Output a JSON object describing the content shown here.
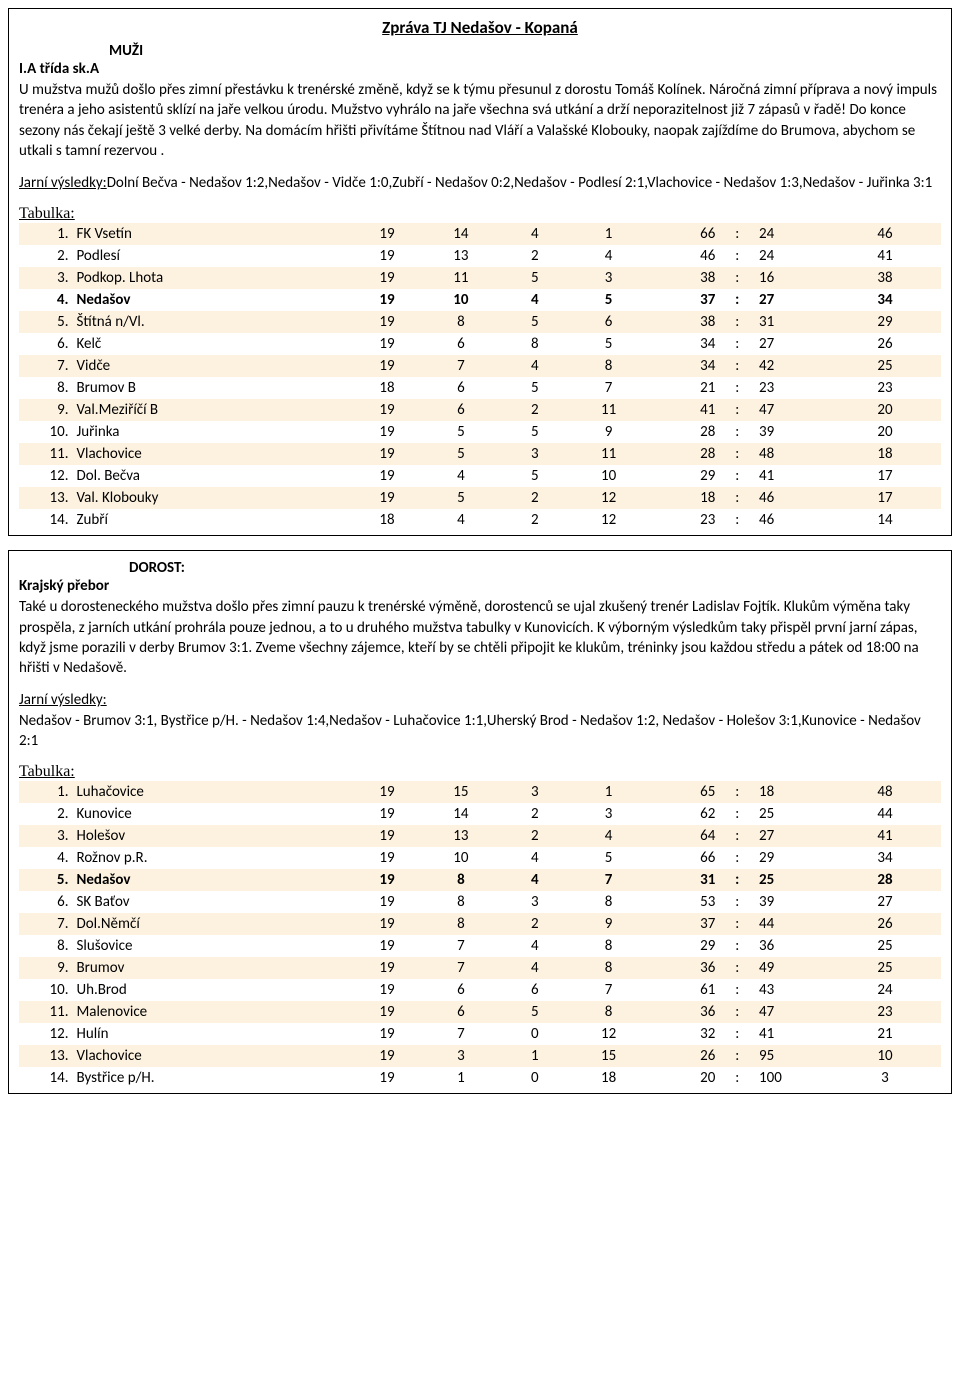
{
  "doc_title": "Zpráva TJ Nedašov - Kopaná",
  "section1": {
    "heading_center": "MUŽI",
    "sub": "I.A třída sk.A",
    "body": "U mužstva mužů došlo přes zimní přestávku k trenérské změně, když se k týmu přesunul z dorostu Tomáš Kolínek. Náročná zimní příprava a nový impuls trenéra a jeho asistentů sklízí na jaře velkou úrodu. Mužstvo vyhrálo na jaře všechna svá utkání a drží neporazitelnost již 7 zápasů v řadě! Do konce sezony nás čekají ještě 3 velké derby. Na domácím hřišti přivítáme Štítnou nad Vláří a Valašské Klobouky, naopak zajíždíme do Brumova, abychom se utkali s tamní rezervou .",
    "results_label": "Jarní výsledky:",
    "results": "Dolní Bečva - Nedašov 1:2,Nedašov - Vidče 1:0,Zubří - Nedašov 0:2,Nedašov - Podlesí 2:1,Vlachovice - Nedašov 1:3,Nedašov - Juřinka 3:1",
    "tabulka_label": "Tabulka:",
    "highlight_index": 3,
    "rows": [
      {
        "rank": "1.",
        "team": "FK Vsetín",
        "p": "19",
        "w": "14",
        "d": "4",
        "l": "1",
        "gf": "66",
        "ga": "24",
        "pts": "46"
      },
      {
        "rank": "2.",
        "team": "Podlesí",
        "p": "19",
        "w": "13",
        "d": "2",
        "l": "4",
        "gf": "46",
        "ga": "24",
        "pts": "41"
      },
      {
        "rank": "3.",
        "team": "Podkop. Lhota",
        "p": "19",
        "w": "11",
        "d": "5",
        "l": "3",
        "gf": "38",
        "ga": "16",
        "pts": "38"
      },
      {
        "rank": "4.",
        "team": "Nedašov",
        "p": "19",
        "w": "10",
        "d": "4",
        "l": "5",
        "gf": "37",
        "ga": "27",
        "pts": "34"
      },
      {
        "rank": "5.",
        "team": "Štítná n/Vl.",
        "p": "19",
        "w": "8",
        "d": "5",
        "l": "6",
        "gf": "38",
        "ga": "31",
        "pts": "29"
      },
      {
        "rank": "6.",
        "team": "Kelč",
        "p": "19",
        "w": "6",
        "d": "8",
        "l": "5",
        "gf": "34",
        "ga": "27",
        "pts": "26"
      },
      {
        "rank": "7.",
        "team": "Vidče",
        "p": "19",
        "w": "7",
        "d": "4",
        "l": "8",
        "gf": "34",
        "ga": "42",
        "pts": "25"
      },
      {
        "rank": "8.",
        "team": "Brumov B",
        "p": "18",
        "w": "6",
        "d": "5",
        "l": "7",
        "gf": "21",
        "ga": "23",
        "pts": "23"
      },
      {
        "rank": "9.",
        "team": "Val.Meziříčí B",
        "p": "19",
        "w": "6",
        "d": "2",
        "l": "11",
        "gf": "41",
        "ga": "47",
        "pts": "20"
      },
      {
        "rank": "10.",
        "team": "Juřinka",
        "p": "19",
        "w": "5",
        "d": "5",
        "l": "9",
        "gf": "28",
        "ga": "39",
        "pts": "20"
      },
      {
        "rank": "11.",
        "team": "Vlachovice",
        "p": "19",
        "w": "5",
        "d": "3",
        "l": "11",
        "gf": "28",
        "ga": "48",
        "pts": "18"
      },
      {
        "rank": "12.",
        "team": "Dol. Bečva",
        "p": "19",
        "w": "4",
        "d": "5",
        "l": "10",
        "gf": "29",
        "ga": "41",
        "pts": "17"
      },
      {
        "rank": "13.",
        "team": "Val. Klobouky",
        "p": "19",
        "w": "5",
        "d": "2",
        "l": "12",
        "gf": "18",
        "ga": "46",
        "pts": "17"
      },
      {
        "rank": "14.",
        "team": "Zubří",
        "p": "18",
        "w": "4",
        "d": "2",
        "l": "12",
        "gf": "23",
        "ga": "46",
        "pts": "14"
      }
    ]
  },
  "section2": {
    "heading_center": "DOROST:",
    "sub": "Krajský přebor",
    "body": "Také u dorosteneckého mužstva došlo přes zimní pauzu k trenérské výměně, dorostenců se ujal zkušený trenér Ladislav Fojtík. Klukům výměna taky prospěla, z jarních utkání prohrála pouze jednou, a to u druhého mužstva tabulky v Kunovicích. K výborným výsledkům taky přispěl první jarní zápas, když jsme porazili v derby Brumov 3:1. Zveme všechny zájemce, kteří by se chtěli připojit ke klukům, tréninky jsou každou středu a pátek od 18:00 na hřišti v Nedašově.",
    "results_label": "Jarní výsledky:",
    "results": "Nedašov - Brumov 3:1, Bystřice p/H. - Nedašov 1:4,Nedašov - Luhačovice 1:1,Uherský Brod - Nedašov 1:2, Nedašov - Holešov 3:1,Kunovice - Nedašov 2:1",
    "tabulka_label": "Tabulka:",
    "highlight_index": 4,
    "rows": [
      {
        "rank": "1.",
        "team": "Luhačovice",
        "p": "19",
        "w": "15",
        "d": "3",
        "l": "1",
        "gf": "65",
        "ga": "18",
        "pts": "48"
      },
      {
        "rank": "2.",
        "team": "Kunovice",
        "p": "19",
        "w": "14",
        "d": "2",
        "l": "3",
        "gf": "62",
        "ga": "25",
        "pts": "44"
      },
      {
        "rank": "3.",
        "team": "Holešov",
        "p": "19",
        "w": "13",
        "d": "2",
        "l": "4",
        "gf": "64",
        "ga": "27",
        "pts": "41"
      },
      {
        "rank": "4.",
        "team": "Rožnov p.R.",
        "p": "19",
        "w": "10",
        "d": "4",
        "l": "5",
        "gf": "66",
        "ga": "29",
        "pts": "34"
      },
      {
        "rank": "5.",
        "team": "Nedašov",
        "p": "19",
        "w": "8",
        "d": "4",
        "l": "7",
        "gf": "31",
        "ga": "25",
        "pts": "28"
      },
      {
        "rank": "6.",
        "team": "SK Baťov",
        "p": "19",
        "w": "8",
        "d": "3",
        "l": "8",
        "gf": "53",
        "ga": "39",
        "pts": "27"
      },
      {
        "rank": "7.",
        "team": "Dol.Němčí",
        "p": "19",
        "w": "8",
        "d": "2",
        "l": "9",
        "gf": "37",
        "ga": "44",
        "pts": "26"
      },
      {
        "rank": "8.",
        "team": "Slušovice",
        "p": "19",
        "w": "7",
        "d": "4",
        "l": "8",
        "gf": "29",
        "ga": "36",
        "pts": "25"
      },
      {
        "rank": "9.",
        "team": "Brumov",
        "p": "19",
        "w": "7",
        "d": "4",
        "l": "8",
        "gf": "36",
        "ga": "49",
        "pts": "25"
      },
      {
        "rank": "10.",
        "team": "Uh.Brod",
        "p": "19",
        "w": "6",
        "d": "6",
        "l": "7",
        "gf": "61",
        "ga": "43",
        "pts": "24"
      },
      {
        "rank": "11.",
        "team": "Malenovice",
        "p": "19",
        "w": "6",
        "d": "5",
        "l": "8",
        "gf": "36",
        "ga": "47",
        "pts": "23"
      },
      {
        "rank": "12.",
        "team": "Hulín",
        "p": "19",
        "w": "7",
        "d": "0",
        "l": "12",
        "gf": "32",
        "ga": "41",
        "pts": "21"
      },
      {
        "rank": "13.",
        "team": "Vlachovice",
        "p": "19",
        "w": "3",
        "d": "1",
        "l": "15",
        "gf": "26",
        "ga": "95",
        "pts": "10"
      },
      {
        "rank": "14.",
        "team": "Bystřice p/H.",
        "p": "19",
        "w": "1",
        "d": "0",
        "l": "18",
        "gf": "20",
        "ga": "100",
        "pts": "3"
      }
    ]
  },
  "style": {
    "odd_row_bg": "#fdf2e0"
  }
}
